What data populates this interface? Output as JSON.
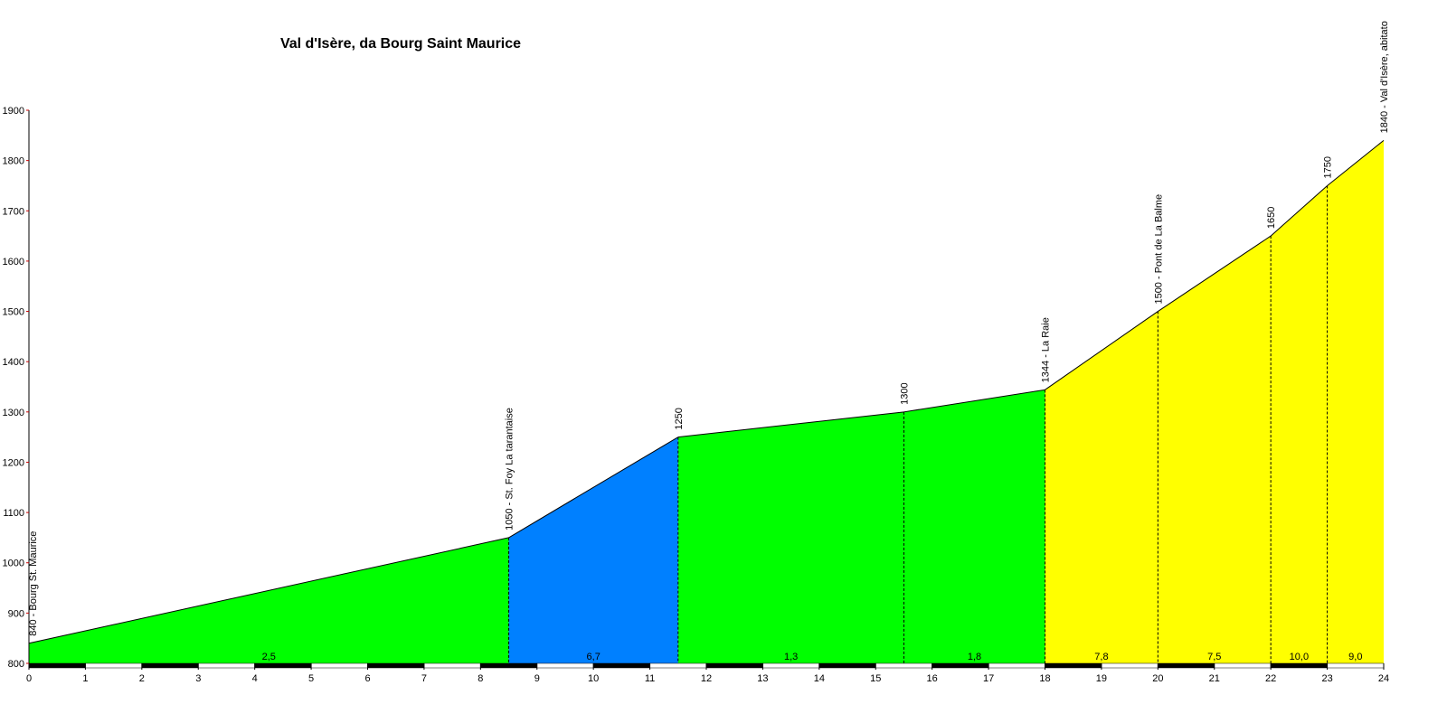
{
  "chart_data": {
    "type": "elevation-profile",
    "title": "Val d'Isère, da Bourg Saint Maurice",
    "x": [
      0,
      8.5,
      11.5,
      15.5,
      18,
      20,
      22,
      23,
      24
    ],
    "values": [
      840,
      1050,
      1250,
      1300,
      1344,
      1500,
      1650,
      1750,
      1840
    ],
    "point_labels": [
      "840 - Bourg St. Maurice",
      "1050 - St. Foy La tarantaise",
      "1250",
      "1300",
      "1344 - La Raie",
      "1500 - Pont de La Balme",
      "1650",
      "1750",
      "1840 - Val d'Isère, abitato"
    ],
    "grade_labels": [
      "2,5",
      "6,7",
      "1,3",
      "1,8",
      "7,8",
      "7,5",
      "10,0",
      "9,0"
    ],
    "segment_colors": [
      "#00ff00",
      "#0080ff",
      "#00ff00",
      "#00ff00",
      "#ffff00",
      "#ffff00",
      "#ffff00",
      "#ffff00"
    ],
    "xlim": [
      0,
      24
    ],
    "xticks": [
      0,
      1,
      2,
      3,
      4,
      5,
      6,
      7,
      8,
      9,
      10,
      11,
      12,
      13,
      14,
      15,
      16,
      17,
      18,
      19,
      20,
      21,
      22,
      23,
      24
    ],
    "ylim": [
      800,
      1900
    ],
    "yticks": [
      800,
      900,
      1000,
      1100,
      1200,
      1300,
      1400,
      1500,
      1600,
      1700,
      1800,
      1900
    ]
  }
}
